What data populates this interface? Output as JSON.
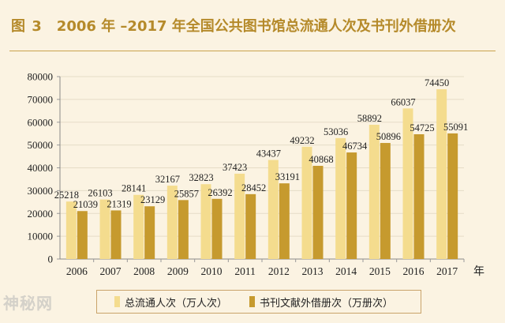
{
  "header": {
    "figure_label": "图 3",
    "title": "2006 年 –2017 年全国公共图书馆总流通人次及书刊外借册次"
  },
  "colors": {
    "series1": "#f4dc8e",
    "series2": "#c69a2e",
    "accent": "#b58a2a"
  },
  "watermark": "神秘网",
  "chart_data": {
    "type": "bar",
    "xlabel": "年",
    "ylabel": "",
    "ylim": [
      0,
      80000
    ],
    "yticks": [
      0,
      10000,
      20000,
      30000,
      40000,
      50000,
      60000,
      70000,
      80000
    ],
    "grid": true,
    "legend_position": "bottom",
    "categories": [
      "2006",
      "2007",
      "2008",
      "2009",
      "2010",
      "2011",
      "2012",
      "2013",
      "2014",
      "2015",
      "2016",
      "2017"
    ],
    "series": [
      {
        "name": "总流通人次（万人次）",
        "values": [
          25218,
          26103,
          28141,
          32167,
          32823,
          37423,
          43437,
          49232,
          53036,
          58892,
          66037,
          74450
        ]
      },
      {
        "name": "书刊文献外借册次（万册次）",
        "values": [
          21039,
          21319,
          23129,
          25857,
          26392,
          28452,
          33191,
          40868,
          46734,
          50896,
          54725,
          55091
        ]
      }
    ]
  }
}
